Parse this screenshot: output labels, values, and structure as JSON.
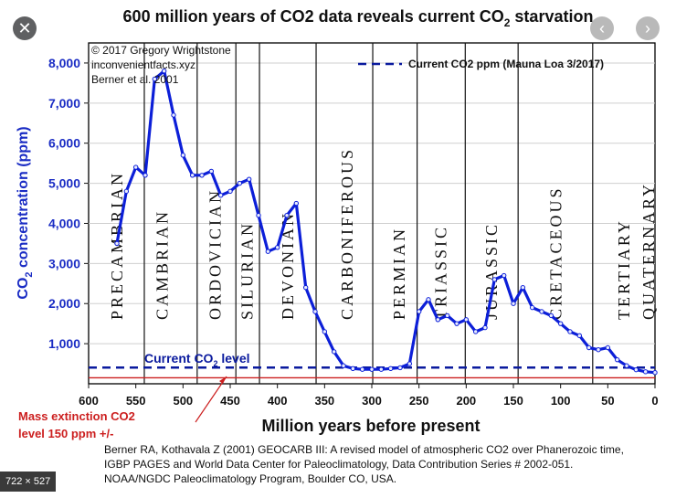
{
  "viewer": {
    "close_icon": "close-icon",
    "prev_icon": "chevron-left-icon",
    "next_icon": "chevron-right-icon",
    "close_glyph": "✕",
    "prev_glyph": "‹",
    "next_glyph": "›",
    "size_label": "722 × 527"
  },
  "chart_data": {
    "type": "line",
    "title": "600 million years of CO2 data reveals current CO",
    "title_sub": "2",
    "title_tail": " starvation",
    "credits": [
      "© 2017 Gregory Wrightstone",
      "inconvenientfacts.xyz",
      "Berner et al. 2001"
    ],
    "legend": "Current CO2 ppm (Mauna Loa 3/2017)",
    "ylabel_pre": "CO",
    "ylabel_sub": "2",
    "ylabel_post": " concentration (ppm)",
    "xlabel": "Million years before present",
    "xlim": [
      600,
      0
    ],
    "ylim": [
      0,
      8500
    ],
    "yticks": [
      {
        "v": 1000,
        "t": "1,000"
      },
      {
        "v": 2000,
        "t": "2,000"
      },
      {
        "v": 3000,
        "t": "3,000"
      },
      {
        "v": 4000,
        "t": "4,000"
      },
      {
        "v": 5000,
        "t": "5,000"
      },
      {
        "v": 6000,
        "t": "6,000"
      },
      {
        "v": 7000,
        "t": "7,000"
      },
      {
        "v": 8000,
        "t": "8,000"
      }
    ],
    "xticks": [
      {
        "v": 600,
        "t": "600"
      },
      {
        "v": 550,
        "t": "550"
      },
      {
        "v": 500,
        "t": "500"
      },
      {
        "v": 450,
        "t": "450"
      },
      {
        "v": 400,
        "t": "400"
      },
      {
        "v": 350,
        "t": "350"
      },
      {
        "v": 300,
        "t": "300"
      },
      {
        "v": 250,
        "t": "250"
      },
      {
        "v": 200,
        "t": "200"
      },
      {
        "v": 150,
        "t": "150"
      },
      {
        "v": 100,
        "t": "100"
      },
      {
        "v": 50,
        "t": "50"
      },
      {
        "v": 0,
        "t": "0"
      }
    ],
    "periods": [
      {
        "name": "PRECAMBRIAN",
        "center": 570,
        "boundary": null
      },
      {
        "name": "CAMBRIAN",
        "center": 522,
        "boundary": 541
      },
      {
        "name": "ORDOVICIAN",
        "center": 466,
        "boundary": 485
      },
      {
        "name": "SILURIAN",
        "center": 432,
        "boundary": 444
      },
      {
        "name": "DEVONIAN",
        "center": 389,
        "boundary": 419
      },
      {
        "name": "CARBONIFEROUS",
        "center": 326,
        "boundary": 359
      },
      {
        "name": "PERMIAN",
        "center": 271,
        "boundary": 299
      },
      {
        "name": "TRIASSIC",
        "center": 227,
        "boundary": 252
      },
      {
        "name": "JURASSIC",
        "center": 173,
        "boundary": 201
      },
      {
        "name": "CRETACEOUS",
        "center": 105,
        "boundary": 145
      },
      {
        "name": "TERTIARY",
        "center": 33,
        "boundary": 66
      },
      {
        "name": "QUATERNARY",
        "center": 3,
        "boundary": 2.6
      }
    ],
    "series": [
      {
        "name": "CO2 (Berner GEOCARB III)",
        "x": [
          570,
          560,
          550,
          540,
          530,
          520,
          510,
          500,
          490,
          480,
          470,
          460,
          450,
          440,
          430,
          420,
          410,
          400,
          390,
          380,
          370,
          360,
          350,
          340,
          330,
          320,
          310,
          300,
          290,
          280,
          270,
          260,
          250,
          240,
          230,
          220,
          210,
          200,
          190,
          180,
          170,
          160,
          150,
          140,
          130,
          120,
          110,
          100,
          90,
          80,
          70,
          60,
          50,
          40,
          30,
          20,
          10,
          0
        ],
        "values": [
          3500,
          4800,
          5400,
          5200,
          7600,
          7800,
          6700,
          5700,
          5200,
          5200,
          5300,
          4700,
          4800,
          5000,
          5100,
          4200,
          3300,
          3400,
          4200,
          4500,
          2400,
          1800,
          1300,
          800,
          450,
          380,
          360,
          360,
          360,
          380,
          400,
          500,
          1800,
          2100,
          1600,
          1700,
          1500,
          1600,
          1300,
          1400,
          2600,
          2700,
          2000,
          2400,
          1900,
          1800,
          1700,
          1500,
          1300,
          1200,
          900,
          850,
          900,
          600,
          450,
          350,
          300,
          280
        ]
      }
    ],
    "current_co2": {
      "value": 405,
      "label_pre": "Current CO",
      "label_sub": "2",
      "label_post": " level"
    },
    "mass_extinction": {
      "value": 150,
      "label": [
        "Mass extinction CO2",
        "level 150 ppm +/-"
      ]
    },
    "source": [
      "Berner RA, Kothavala Z (2001) GEOCARB III: A revised model of atmospheric CO2 over Phanerozoic time,",
      "IGBP PAGES and World Data Center for Paleoclimatology, Data Contribution Series # 2002-051.",
      "NOAA/NGDC Paleoclimatology Program, Boulder CO, USA."
    ],
    "colors": {
      "line": "#0c1fd8",
      "axis_text": "#1a2cc4",
      "current": "#0a1a9e",
      "extinction": "#cc1f1f",
      "text": "#111111"
    }
  }
}
